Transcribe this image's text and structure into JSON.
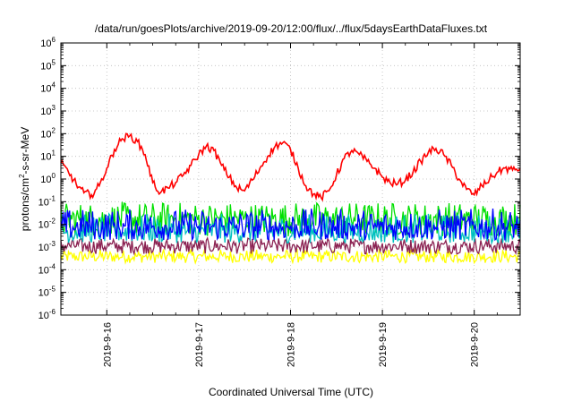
{
  "chart_data": {
    "type": "line",
    "title": "/data/run/goesPlots/archive/2019-09-20/12:00/flux/../flux/5daysEarthDataFluxes.txt",
    "xlabel": "Coordinated Universal Time (UTC)",
    "ylabel": {
      "prefix": "protons/cm",
      "sup": "2",
      "suffix": "-s-sr-MeV"
    },
    "yscale": "log",
    "ylim": [
      1e-06,
      1000000.0
    ],
    "yticks": [
      {
        "base": "10",
        "exp": "6"
      },
      {
        "base": "10",
        "exp": "5"
      },
      {
        "base": "10",
        "exp": "4"
      },
      {
        "base": "10",
        "exp": "3"
      },
      {
        "base": "10",
        "exp": "2"
      },
      {
        "base": "10",
        "exp": "1"
      },
      {
        "base": "10",
        "exp": "0"
      },
      {
        "base": "10",
        "exp": "-1"
      },
      {
        "base": "10",
        "exp": "-2"
      },
      {
        "base": "10",
        "exp": "-3"
      },
      {
        "base": "10",
        "exp": "-4"
      },
      {
        "base": "10",
        "exp": "-5"
      },
      {
        "base": "10",
        "exp": "-6"
      }
    ],
    "xlim": [
      "2019-09-15T12:00",
      "2019-09-20T12:00"
    ],
    "xticks": [
      {
        "label": "2019-9-16",
        "value": "2019-09-16T00:00"
      },
      {
        "label": "2019-9-17",
        "value": "2019-09-17T00:00"
      },
      {
        "label": "2019-9-18",
        "value": "2019-09-18T00:00"
      },
      {
        "label": "2019-9-19",
        "value": "2019-09-19T00:00"
      },
      {
        "label": "2019-9-20",
        "value": "2019-09-20T00:00"
      }
    ],
    "grid": true,
    "series": [
      {
        "color": "#ff0000",
        "x": [
          "2019-09-15T12:00",
          "2019-09-15T14:00",
          "2019-09-15T16:00",
          "2019-09-15T18:00",
          "2019-09-15T20:00",
          "2019-09-15T22:00",
          "2019-09-16T00:00",
          "2019-09-16T02:00",
          "2019-09-16T04:00",
          "2019-09-16T06:00",
          "2019-09-16T08:00",
          "2019-09-16T10:00",
          "2019-09-16T12:00",
          "2019-09-16T14:00",
          "2019-09-16T16:00",
          "2019-09-16T18:00",
          "2019-09-16T20:00",
          "2019-09-16T22:00",
          "2019-09-17T00:00",
          "2019-09-17T02:00",
          "2019-09-17T04:00",
          "2019-09-17T06:00",
          "2019-09-17T08:00",
          "2019-09-17T10:00",
          "2019-09-17T12:00",
          "2019-09-17T14:00",
          "2019-09-17T16:00",
          "2019-09-17T18:00",
          "2019-09-17T20:00",
          "2019-09-17T22:00",
          "2019-09-18T00:00",
          "2019-09-18T02:00",
          "2019-09-18T04:00",
          "2019-09-18T06:00",
          "2019-09-18T08:00",
          "2019-09-18T10:00",
          "2019-09-18T12:00",
          "2019-09-18T14:00",
          "2019-09-18T16:00",
          "2019-09-18T18:00",
          "2019-09-18T20:00",
          "2019-09-18T22:00",
          "2019-09-19T00:00",
          "2019-09-19T02:00",
          "2019-09-19T04:00",
          "2019-09-19T06:00",
          "2019-09-19T08:00",
          "2019-09-19T10:00",
          "2019-09-19T12:00",
          "2019-09-19T14:00",
          "2019-09-19T16:00",
          "2019-09-19T18:00",
          "2019-09-19T20:00",
          "2019-09-19T22:00",
          "2019-09-20T00:00",
          "2019-09-20T02:00",
          "2019-09-20T04:00",
          "2019-09-20T06:00",
          "2019-09-20T08:00",
          "2019-09-20T10:00",
          "2019-09-20T12:00"
        ],
        "values": [
          5,
          2,
          0.6,
          0.25,
          0.2,
          0.5,
          3,
          20,
          60,
          80,
          45,
          12,
          0.7,
          0.25,
          0.4,
          0.7,
          1.5,
          4,
          12,
          28,
          18,
          4,
          1.2,
          0.4,
          0.3,
          0.9,
          3,
          10,
          28,
          40,
          20,
          3,
          0.5,
          0.22,
          0.15,
          0.3,
          1.5,
          8,
          18,
          12,
          6,
          3,
          1.2,
          0.7,
          0.6,
          0.9,
          2,
          6,
          15,
          22,
          12,
          4,
          1,
          0.35,
          0.2,
          0.5,
          1,
          2,
          3,
          2.5,
          3
        ]
      },
      {
        "color": "#00e000",
        "min": 0.003,
        "max": 0.1,
        "typical": 0.02
      },
      {
        "color": "#00c0c0",
        "min": 0.0015,
        "max": 0.03,
        "typical": 0.005
      },
      {
        "color": "#0000ff",
        "min": 0.002,
        "max": 0.05,
        "typical": 0.008
      },
      {
        "color": "#8b2252",
        "min": 0.0005,
        "max": 0.0025,
        "typical": 0.0012
      },
      {
        "color": "#ffff00",
        "min": 0.0002,
        "max": 0.0008,
        "typical": 0.0004
      }
    ]
  }
}
